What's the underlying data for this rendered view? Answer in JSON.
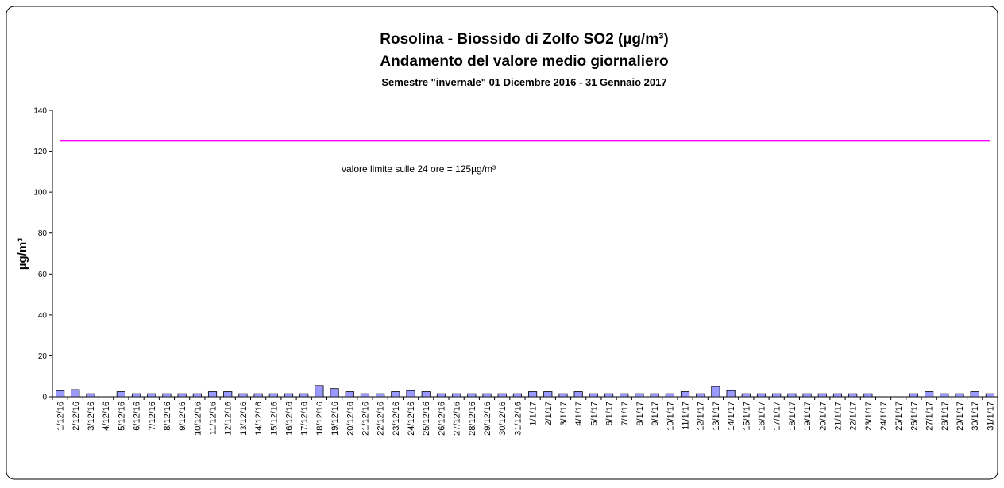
{
  "chart_data": {
    "type": "bar",
    "title": "Rosolina - Biossido di Zolfo SO2 (µg/m³)",
    "subtitle": "Andamento del valore medio giornaliero",
    "subtitle2": "Semestre \"invernale\" 01 Dicembre 2016 - 31 Gennaio 2017",
    "y_label": "µg/m³",
    "annotation": "valore limite sulle 24 ore = 125µg/m³",
    "reference_line": {
      "value": 125,
      "color": "#ff00ff"
    },
    "color": "#9999ff",
    "categories": [
      "1/12/16",
      "2/12/16",
      "3/12/16",
      "4/12/16",
      "5/12/16",
      "6/12/16",
      "7/12/16",
      "8/12/16",
      "9/12/16",
      "10/12/16",
      "11/12/16",
      "12/12/16",
      "13/12/16",
      "14/12/16",
      "15/12/16",
      "16/12/16",
      "17/12/16",
      "18/12/16",
      "19/12/16",
      "20/12/16",
      "21/12/16",
      "22/12/16",
      "23/12/16",
      "24/12/16",
      "25/12/16",
      "26/12/16",
      "27/12/16",
      "28/12/16",
      "29/12/16",
      "30/12/16",
      "31/12/16",
      "1/1/17",
      "2/1/17",
      "3/1/17",
      "4/1/17",
      "5/1/17",
      "6/1/17",
      "7/1/17",
      "8/1/17",
      "9/1/17",
      "10/1/17",
      "11/1/17",
      "12/1/17",
      "13/1/17",
      "14/1/17",
      "15/1/17",
      "16/1/17",
      "17/1/17",
      "18/1/17",
      "19/1/17",
      "20/1/17",
      "21/1/17",
      "22/1/17",
      "23/1/17",
      "24/1/17",
      "25/1/17",
      "26/1/17",
      "27/1/17",
      "28/1/17",
      "29/1/17",
      "30/1/17",
      "31/1/17"
    ],
    "values": [
      3,
      3.5,
      1.5,
      null,
      2.5,
      1.5,
      1.5,
      1.5,
      1.5,
      1.5,
      2.5,
      2.5,
      1.5,
      1.5,
      1.5,
      1.5,
      1.5,
      5.5,
      4,
      2.5,
      1.5,
      1.5,
      2.5,
      3,
      2.5,
      1.5,
      1.5,
      1.5,
      1.5,
      1.5,
      1.5,
      2.5,
      2.5,
      1.5,
      2.5,
      1.5,
      1.5,
      1.5,
      1.5,
      1.5,
      1.5,
      2.5,
      1.5,
      5,
      3,
      1.5,
      1.5,
      1.5,
      1.5,
      1.5,
      1.5,
      1.5,
      1.5,
      1.5,
      null,
      null,
      1.5,
      2.5,
      1.5,
      1.5,
      2.5,
      1.5
    ],
    "ylim": [
      0,
      140
    ],
    "yticks": [
      0,
      20,
      40,
      60,
      80,
      100,
      120,
      140
    ],
    "grid": false
  }
}
